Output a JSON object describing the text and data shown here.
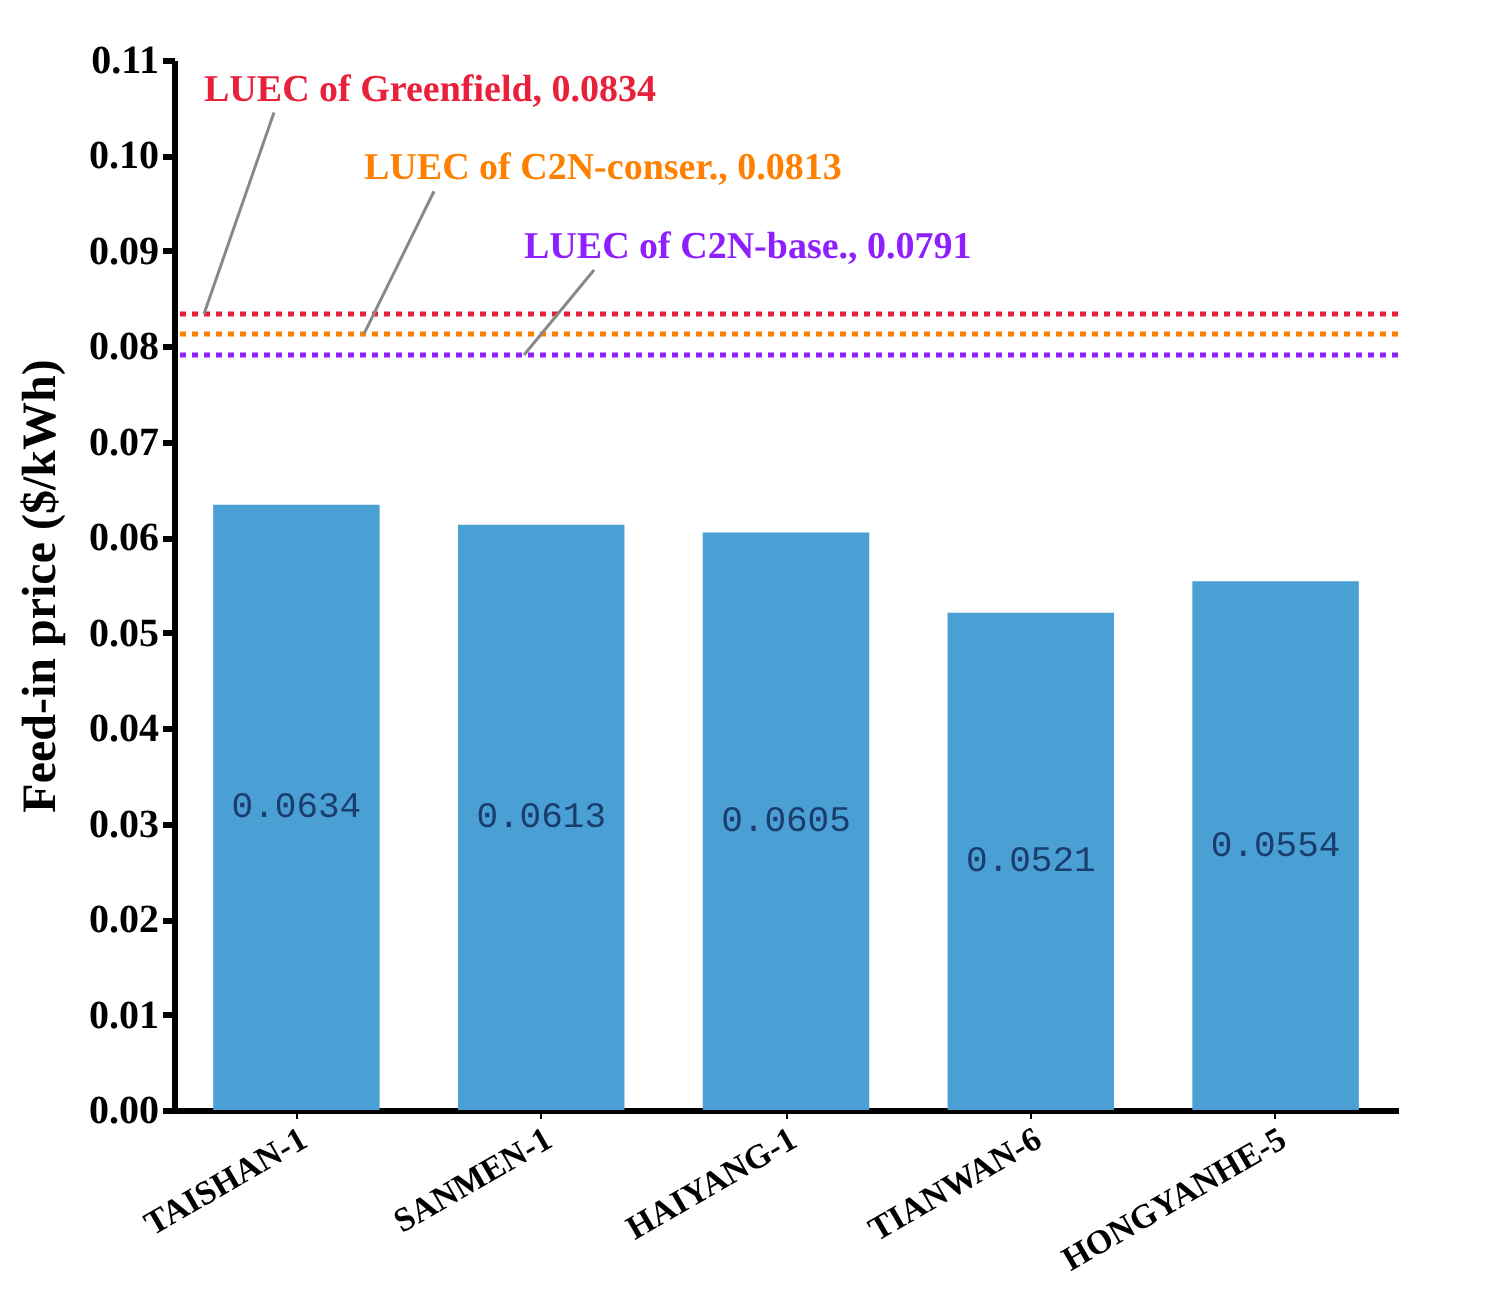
{
  "chart_data": {
    "type": "bar",
    "ylabel": "Feed-in price ($/kWh)",
    "categories": [
      "TAISHAN-1",
      "SANMEN-1",
      "HAIYANG-1",
      "TIANWAN-6",
      "HONGYANHE-5"
    ],
    "values": [
      0.0634,
      0.0613,
      0.0605,
      0.0521,
      0.0554
    ],
    "color": "#4a9fd4",
    "ylim": [
      0,
      0.11
    ],
    "yticks": [
      "0.00",
      "0.01",
      "0.02",
      "0.03",
      "0.04",
      "0.05",
      "0.06",
      "0.07",
      "0.08",
      "0.09",
      "0.10",
      "0.11"
    ],
    "data_labels": true,
    "grid": false,
    "ref_lines": [
      {
        "axis": "y",
        "value": 0.0834,
        "label": "LUEC of Greenfield, 0.0834",
        "color": "#e8203a",
        "line_style": "dotted"
      },
      {
        "axis": "y",
        "value": 0.0813,
        "label": "LUEC of C2N-conser., 0.0813",
        "color": "#ff8000",
        "line_style": "dotted"
      },
      {
        "axis": "y",
        "value": 0.0791,
        "label": "LUEC of C2N-base., 0.0791",
        "color": "#8f1fff",
        "line_style": "dotted"
      }
    ]
  }
}
